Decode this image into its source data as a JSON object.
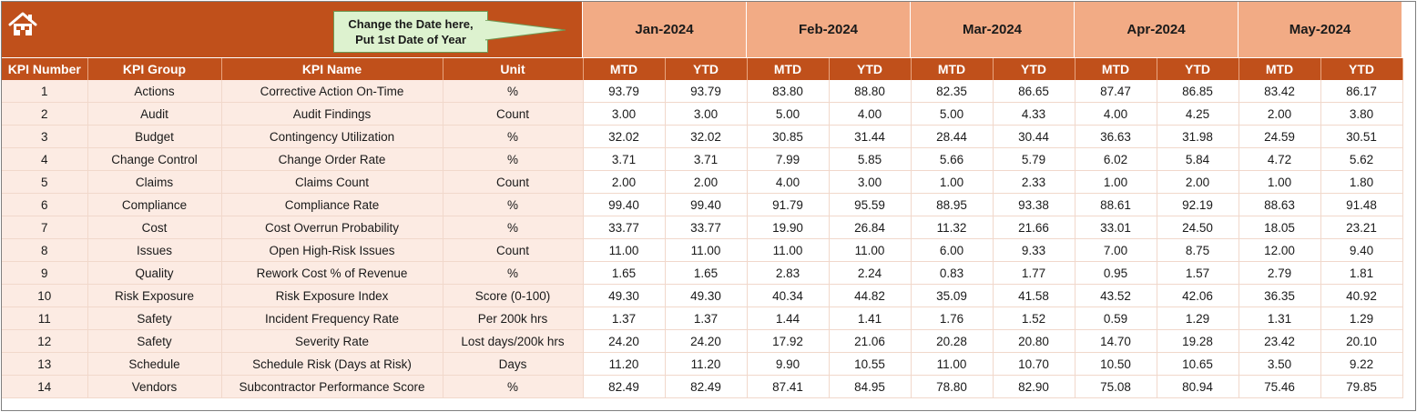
{
  "callout": {
    "line1": "Change the Date here,",
    "line2": "Put 1st Date of Year"
  },
  "months": [
    "Jan-2024",
    "Feb-2024",
    "Mar-2024",
    "Apr-2024",
    "May-2024"
  ],
  "columns": {
    "kpi_number": "KPI Number",
    "kpi_group": "KPI Group",
    "kpi_name": "KPI Name",
    "unit": "Unit",
    "mtd": "MTD",
    "ytd": "YTD"
  },
  "colors": {
    "header_dark": "#c0501b",
    "header_light": "#f2ab85",
    "row_tint": "#fcebe3",
    "callout_fill": "#ddf2cf"
  },
  "icons": {
    "home": "home-icon"
  },
  "rows": [
    {
      "n": "1",
      "group": "Actions",
      "name": "Corrective Action On-Time",
      "unit": "%",
      "vals": [
        "93.79",
        "93.79",
        "83.80",
        "88.80",
        "82.35",
        "86.65",
        "87.47",
        "86.85",
        "83.42",
        "86.17"
      ]
    },
    {
      "n": "2",
      "group": "Audit",
      "name": "Audit Findings",
      "unit": "Count",
      "vals": [
        "3.00",
        "3.00",
        "5.00",
        "4.00",
        "5.00",
        "4.33",
        "4.00",
        "4.25",
        "2.00",
        "3.80"
      ]
    },
    {
      "n": "3",
      "group": "Budget",
      "name": "Contingency Utilization",
      "unit": "%",
      "vals": [
        "32.02",
        "32.02",
        "30.85",
        "31.44",
        "28.44",
        "30.44",
        "36.63",
        "31.98",
        "24.59",
        "30.51"
      ]
    },
    {
      "n": "4",
      "group": "Change Control",
      "name": "Change Order Rate",
      "unit": "%",
      "vals": [
        "3.71",
        "3.71",
        "7.99",
        "5.85",
        "5.66",
        "5.79",
        "6.02",
        "5.84",
        "4.72",
        "5.62"
      ]
    },
    {
      "n": "5",
      "group": "Claims",
      "name": "Claims Count",
      "unit": "Count",
      "vals": [
        "2.00",
        "2.00",
        "4.00",
        "3.00",
        "1.00",
        "2.33",
        "1.00",
        "2.00",
        "1.00",
        "1.80"
      ]
    },
    {
      "n": "6",
      "group": "Compliance",
      "name": "Compliance Rate",
      "unit": "%",
      "vals": [
        "99.40",
        "99.40",
        "91.79",
        "95.59",
        "88.95",
        "93.38",
        "88.61",
        "92.19",
        "88.63",
        "91.48"
      ]
    },
    {
      "n": "7",
      "group": "Cost",
      "name": "Cost Overrun Probability",
      "unit": "%",
      "vals": [
        "33.77",
        "33.77",
        "19.90",
        "26.84",
        "11.32",
        "21.66",
        "33.01",
        "24.50",
        "18.05",
        "23.21"
      ]
    },
    {
      "n": "8",
      "group": "Issues",
      "name": "Open High-Risk Issues",
      "unit": "Count",
      "vals": [
        "11.00",
        "11.00",
        "11.00",
        "11.00",
        "6.00",
        "9.33",
        "7.00",
        "8.75",
        "12.00",
        "9.40"
      ]
    },
    {
      "n": "9",
      "group": "Quality",
      "name": "Rework Cost % of Revenue",
      "unit": "%",
      "vals": [
        "1.65",
        "1.65",
        "2.83",
        "2.24",
        "0.83",
        "1.77",
        "0.95",
        "1.57",
        "2.79",
        "1.81"
      ]
    },
    {
      "n": "10",
      "group": "Risk Exposure",
      "name": "Risk Exposure Index",
      "unit": "Score (0-100)",
      "vals": [
        "49.30",
        "49.30",
        "40.34",
        "44.82",
        "35.09",
        "41.58",
        "43.52",
        "42.06",
        "36.35",
        "40.92"
      ]
    },
    {
      "n": "11",
      "group": "Safety",
      "name": "Incident Frequency Rate",
      "unit": "Per 200k hrs",
      "vals": [
        "1.37",
        "1.37",
        "1.44",
        "1.41",
        "1.76",
        "1.52",
        "0.59",
        "1.29",
        "1.31",
        "1.29"
      ]
    },
    {
      "n": "12",
      "group": "Safety",
      "name": "Severity Rate",
      "unit": "Lost days/200k hrs",
      "vals": [
        "24.20",
        "24.20",
        "17.92",
        "21.06",
        "20.28",
        "20.80",
        "14.70",
        "19.28",
        "23.42",
        "20.10"
      ]
    },
    {
      "n": "13",
      "group": "Schedule",
      "name": "Schedule Risk (Days at Risk)",
      "unit": "Days",
      "vals": [
        "11.20",
        "11.20",
        "9.90",
        "10.55",
        "11.00",
        "10.70",
        "10.50",
        "10.65",
        "3.50",
        "9.22"
      ]
    },
    {
      "n": "14",
      "group": "Vendors",
      "name": "Subcontractor Performance Score",
      "unit": "%",
      "vals": [
        "82.49",
        "82.49",
        "87.41",
        "84.95",
        "78.80",
        "82.90",
        "75.08",
        "80.94",
        "75.46",
        "79.85"
      ]
    }
  ]
}
